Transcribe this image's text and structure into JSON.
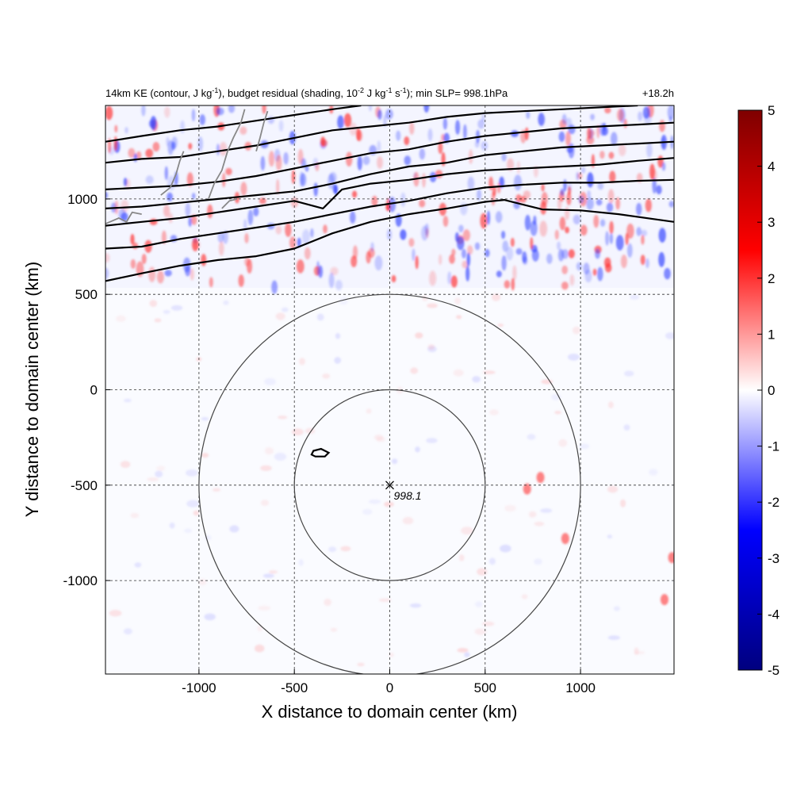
{
  "chart_data": {
    "type": "heatmap",
    "title": {
      "left": "14km KE (contour, J kg-1), budget residual (shading, 10-2 J kg-1 s-1); min SLP= 998.1hPa",
      "p1": "14km KE (contour, J kg",
      "p1sup": "-1",
      "p2": "), budget residual (shading, 10",
      "p2sup": "-2",
      "p3": " J kg",
      "p3sup": "-1",
      "p4": " s",
      "p4sup": "-1",
      "p5": "); min SLP= 998.1hPa",
      "right": "+18.2h"
    },
    "xlabel": "X distance to domain center (km)",
    "ylabel": "Y distance to domain center (km)",
    "xlim": [
      -1490,
      1490
    ],
    "ylim": [
      -1490,
      1490
    ],
    "x_ticks": [
      -1000,
      -500,
      0,
      500,
      1000
    ],
    "y_ticks": [
      1000,
      500,
      0,
      -500,
      -1000
    ],
    "grid": true,
    "colorbar": {
      "range": [
        -5,
        5
      ],
      "ticks": [
        5,
        4,
        3,
        2,
        1,
        0,
        -1,
        -2,
        -3,
        -4,
        -5
      ],
      "colormap": "seismic",
      "colors": [
        "#00007f",
        "#0000ff",
        "#ffffff",
        "#ff0000",
        "#7f0000"
      ]
    },
    "storm_center": {
      "x": 0,
      "y": -500,
      "min_slp_label": "998.1"
    },
    "range_circles_km": [
      500,
      1000
    ],
    "ke_contours": [
      {
        "name": "",
        "points": [
          [
            -1490,
            570
          ],
          [
            -1300,
            610
          ],
          [
            -1100,
            650
          ],
          [
            -900,
            680
          ],
          [
            -700,
            700
          ],
          [
            -500,
            740
          ],
          [
            -300,
            820
          ],
          [
            -100,
            880
          ],
          [
            100,
            920
          ],
          [
            300,
            950
          ],
          [
            500,
            985
          ],
          [
            600,
            995
          ],
          [
            800,
            945
          ],
          [
            1000,
            940
          ],
          [
            1200,
            920
          ],
          [
            1490,
            880
          ]
        ]
      },
      {
        "name": "",
        "points": [
          [
            -1490,
            740
          ],
          [
            -1300,
            750
          ],
          [
            -1100,
            790
          ],
          [
            -900,
            820
          ],
          [
            -700,
            850
          ],
          [
            -500,
            880
          ],
          [
            -300,
            920
          ],
          [
            -100,
            960
          ],
          [
            100,
            990
          ],
          [
            300,
            1030
          ],
          [
            500,
            1060
          ],
          [
            700,
            1075
          ],
          [
            900,
            1085
          ],
          [
            1100,
            1085
          ],
          [
            1300,
            1095
          ],
          [
            1490,
            1100
          ]
        ]
      },
      {
        "name": "",
        "points": [
          [
            -1490,
            860
          ],
          [
            -1300,
            880
          ],
          [
            -1100,
            900
          ],
          [
            -900,
            930
          ],
          [
            -700,
            960
          ],
          [
            -500,
            990
          ],
          [
            -350,
            950
          ],
          [
            -250,
            1050
          ],
          [
            -100,
            1080
          ],
          [
            100,
            1100
          ],
          [
            300,
            1130
          ],
          [
            500,
            1150
          ],
          [
            700,
            1160
          ],
          [
            900,
            1170
          ],
          [
            1100,
            1180
          ],
          [
            1300,
            1200
          ],
          [
            1490,
            1215
          ]
        ]
      },
      {
        "name": "",
        "points": [
          [
            -1490,
            950
          ],
          [
            -1300,
            960
          ],
          [
            -1100,
            980
          ],
          [
            -900,
            1000
          ],
          [
            -700,
            1020
          ],
          [
            -500,
            1040
          ],
          [
            -300,
            1080
          ],
          [
            -100,
            1130
          ],
          [
            100,
            1170
          ],
          [
            300,
            1190
          ],
          [
            500,
            1230
          ],
          [
            700,
            1250
          ],
          [
            900,
            1270
          ],
          [
            1100,
            1280
          ],
          [
            1300,
            1290
          ],
          [
            1490,
            1300
          ]
        ]
      },
      {
        "name": "",
        "points": [
          [
            -1490,
            1050
          ],
          [
            -1300,
            1060
          ],
          [
            -1100,
            1070
          ],
          [
            -900,
            1090
          ],
          [
            -700,
            1120
          ],
          [
            -500,
            1160
          ],
          [
            -300,
            1200
          ],
          [
            -100,
            1240
          ],
          [
            100,
            1260
          ],
          [
            300,
            1300
          ],
          [
            500,
            1330
          ],
          [
            700,
            1350
          ],
          [
            900,
            1370
          ],
          [
            1100,
            1380
          ],
          [
            1300,
            1390
          ],
          [
            1490,
            1400
          ]
        ]
      },
      {
        "name": "",
        "points": [
          [
            -1490,
            1190
          ],
          [
            -1300,
            1210
          ],
          [
            -1100,
            1220
          ],
          [
            -900,
            1250
          ],
          [
            -700,
            1280
          ],
          [
            -500,
            1320
          ],
          [
            -300,
            1360
          ],
          [
            -100,
            1380
          ],
          [
            100,
            1400
          ],
          [
            300,
            1430
          ],
          [
            500,
            1450
          ],
          [
            700,
            1460
          ],
          [
            900,
            1470
          ],
          [
            1100,
            1480
          ],
          [
            1300,
            1490
          ]
        ]
      },
      {
        "name": "",
        "points": [
          [
            -1490,
            1300
          ],
          [
            -1300,
            1330
          ],
          [
            -1100,
            1360
          ],
          [
            -900,
            1380
          ],
          [
            -700,
            1410
          ],
          [
            -500,
            1440
          ],
          [
            -300,
            1470
          ],
          [
            -150,
            1490
          ]
        ]
      }
    ],
    "ke_small_contour": [
      [
        -400,
        -320
      ],
      [
        -360,
        -310
      ],
      [
        -320,
        -330
      ],
      [
        -340,
        -350
      ],
      [
        -390,
        -350
      ],
      [
        -410,
        -340
      ],
      [
        -400,
        -320
      ]
    ]
  }
}
